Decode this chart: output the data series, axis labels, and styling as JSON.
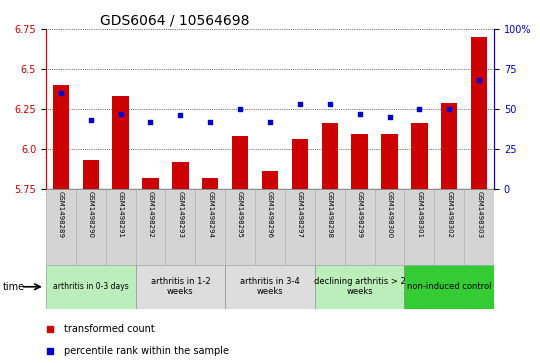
{
  "title": "GDS6064 / 10564698",
  "samples": [
    "GSM1498289",
    "GSM1498290",
    "GSM1498291",
    "GSM1498292",
    "GSM1498293",
    "GSM1498294",
    "GSM1498295",
    "GSM1498296",
    "GSM1498297",
    "GSM1498298",
    "GSM1498299",
    "GSM1498300",
    "GSM1498301",
    "GSM1498302",
    "GSM1498303"
  ],
  "red_values": [
    6.4,
    5.93,
    6.33,
    5.82,
    5.92,
    5.82,
    6.08,
    5.86,
    6.06,
    6.16,
    6.09,
    6.09,
    6.16,
    6.29,
    6.7
  ],
  "blue_values": [
    60,
    43,
    47,
    42,
    46,
    42,
    50,
    42,
    53,
    53,
    47,
    45,
    50,
    50,
    68
  ],
  "ylim_left": [
    5.75,
    6.75
  ],
  "ylim_right": [
    0,
    100
  ],
  "yticks_left": [
    5.75,
    6.0,
    6.25,
    6.5,
    6.75
  ],
  "yticks_right": [
    0,
    25,
    50,
    75,
    100
  ],
  "bar_color": "#cc0000",
  "dot_color": "#0000cc",
  "groups": [
    {
      "label": "arthritis in 0-3 days",
      "start": 0,
      "end": 3,
      "color": "#bbeebb",
      "small": true
    },
    {
      "label": "arthritis in 1-2\nweeks",
      "start": 3,
      "end": 6,
      "color": "#eeeeee",
      "small": false
    },
    {
      "label": "arthritis in 3-4\nweeks",
      "start": 6,
      "end": 9,
      "color": "#eeeeee",
      "small": false
    },
    {
      "label": "declining arthritis > 2\nweeks",
      "start": 9,
      "end": 12,
      "color": "#bbeebb",
      "small": false
    },
    {
      "label": "non-induced control",
      "start": 12,
      "end": 15,
      "color": "#33cc33",
      "small": false
    }
  ],
  "legend_red": "transformed count",
  "legend_blue": "percentile rank within the sample",
  "title_fontsize": 10,
  "tick_fontsize": 7,
  "group_fontsize": 6,
  "legend_fontsize": 7,
  "sample_fontsize": 5,
  "time_label": "time"
}
